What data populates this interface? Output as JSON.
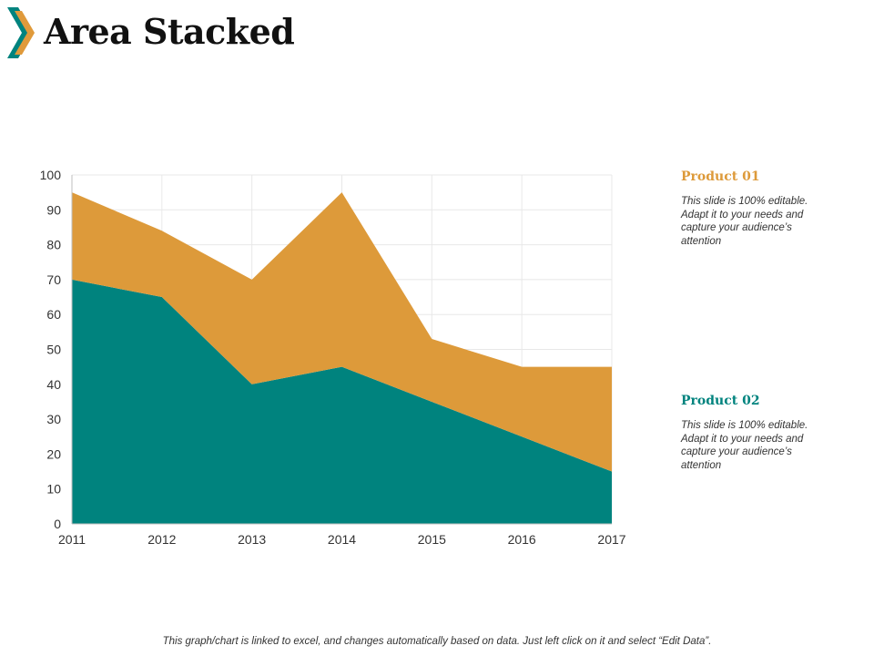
{
  "page": {
    "title": "Area Stacked",
    "footer_note": "This graph/chart is linked to excel, and changes automatically based on data. Just left click on it and select “Edit Data”."
  },
  "colors": {
    "product_01": "#DD9A3A",
    "product_02": "#00837E",
    "icon_orange": "#E09A3B",
    "icon_teal": "#00837E",
    "grid": "#E8E8E8"
  },
  "legend": [
    {
      "title": "Product 01",
      "description": "This slide is 100% editable. Adapt it to your needs and capture your audience’s attention"
    },
    {
      "title": "Product 02",
      "description": "This slide is 100% editable. Adapt it to your needs and capture your audience’s attention"
    }
  ],
  "chart_data": {
    "type": "area",
    "stacked": true,
    "title": "Area Stacked",
    "xlabel": "",
    "ylabel": "",
    "categories": [
      "2011",
      "2012",
      "2013",
      "2014",
      "2015",
      "2016",
      "2017"
    ],
    "series": [
      {
        "name": "Product 02",
        "values": [
          70,
          65,
          40,
          45,
          35,
          25,
          15
        ]
      },
      {
        "name": "Product 01",
        "values": [
          25,
          19,
          30,
          50,
          18,
          20,
          30
        ]
      }
    ],
    "ylim": [
      0,
      100
    ],
    "yticks": [
      0,
      10,
      20,
      30,
      40,
      50,
      60,
      70,
      80,
      90,
      100
    ],
    "grid": true,
    "legend_position": "right"
  }
}
